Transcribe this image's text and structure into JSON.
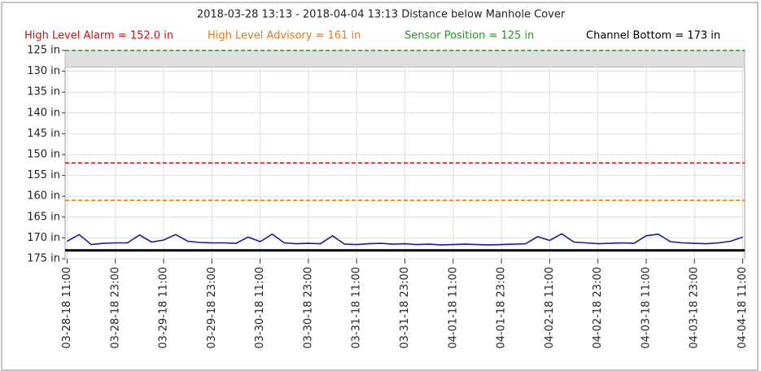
{
  "chart_data": {
    "type": "line",
    "title": "2018-03-28 13:13 - 2018-04-04 13:13 Distance below Manhole Cover",
    "references": [
      {
        "name": "High Level Alarm",
        "value": 152.0,
        "label": "High Level Alarm = 152.0 in",
        "color": "#cc1111",
        "style": "dashed"
      },
      {
        "name": "High Level Advisory",
        "value": 161,
        "label": "High Level Advisory = 161 in",
        "color": "#e07a1f",
        "style": "dashed"
      },
      {
        "name": "Sensor Position",
        "value": 125,
        "label": "Sensor Position = 125 in",
        "color": "#229922",
        "style": "dashed"
      },
      {
        "name": "Channel Bottom",
        "value": 173,
        "label": "Channel Bottom = 173 in",
        "color": "#000000",
        "style": "solid"
      }
    ],
    "shaded_range": [
      125,
      129
    ],
    "x": [
      "03-28-18 11:00",
      "03-28-18 14:00",
      "03-28-18 17:00",
      "03-28-18 20:00",
      "03-28-18 23:00",
      "03-29-18 02:00",
      "03-29-18 05:00",
      "03-29-18 08:00",
      "03-29-18 11:00",
      "03-29-18 14:00",
      "03-29-18 17:00",
      "03-29-18 20:00",
      "03-29-18 23:00",
      "03-30-18 02:00",
      "03-30-18 05:00",
      "03-30-18 08:00",
      "03-30-18 11:00",
      "03-30-18 14:00",
      "03-30-18 17:00",
      "03-30-18 20:00",
      "03-30-18 23:00",
      "03-31-18 02:00",
      "03-31-18 05:00",
      "03-31-18 08:00",
      "03-31-18 11:00",
      "03-31-18 14:00",
      "03-31-18 17:00",
      "03-31-18 20:00",
      "03-31-18 23:00",
      "04-01-18 02:00",
      "04-01-18 05:00",
      "04-01-18 08:00",
      "04-01-18 11:00",
      "04-01-18 14:00",
      "04-01-18 17:00",
      "04-01-18 20:00",
      "04-01-18 23:00",
      "04-02-18 02:00",
      "04-02-18 05:00",
      "04-02-18 08:00",
      "04-02-18 11:00",
      "04-02-18 14:00",
      "04-02-18 17:00",
      "04-02-18 20:00",
      "04-02-18 23:00",
      "04-03-18 02:00",
      "04-03-18 05:00",
      "04-03-18 08:00",
      "04-03-18 11:00",
      "04-03-18 14:00",
      "04-03-18 17:00",
      "04-03-18 20:00",
      "04-03-18 23:00",
      "04-04-18 02:00",
      "04-04-18 05:00",
      "04-04-18 08:00",
      "04-04-18 11:00"
    ],
    "series": [
      {
        "name": "Distance below Manhole Cover",
        "color": "#1a1aa0",
        "values": [
          170.8,
          169.2,
          171.6,
          171.3,
          171.2,
          171.2,
          169.3,
          171.0,
          170.5,
          169.2,
          170.8,
          171.1,
          171.2,
          171.2,
          171.3,
          169.8,
          170.9,
          169.1,
          171.2,
          171.4,
          171.3,
          171.4,
          169.5,
          171.5,
          171.6,
          171.4,
          171.3,
          171.5,
          171.4,
          171.6,
          171.5,
          171.7,
          171.6,
          171.5,
          171.6,
          171.7,
          171.6,
          171.5,
          171.4,
          169.7,
          170.6,
          169.0,
          171.0,
          171.2,
          171.4,
          171.3,
          171.2,
          171.3,
          169.5,
          169.1,
          170.9,
          171.2,
          171.3,
          171.4,
          171.2,
          170.8,
          169.8
        ]
      }
    ],
    "xlim": [
      "03-28-18 10:30",
      "04-04-18 11:30"
    ],
    "xticks": [
      "03-28-18 11:00",
      "03-28-18 23:00",
      "03-29-18 11:00",
      "03-29-18 23:00",
      "03-30-18 11:00",
      "03-30-18 23:00",
      "03-31-18 11:00",
      "03-31-18 23:00",
      "04-01-18 11:00",
      "04-01-18 23:00",
      "04-02-18 11:00",
      "04-02-18 23:00",
      "04-03-18 11:00",
      "04-03-18 23:00",
      "04-04-18 11:00"
    ],
    "ylim": [
      125,
      175
    ],
    "y_inverted": true,
    "yticks": [
      {
        "value": 125,
        "label": "125 in"
      },
      {
        "value": 130,
        "label": "130 in"
      },
      {
        "value": 135,
        "label": "135 in"
      },
      {
        "value": 140,
        "label": "140 in"
      },
      {
        "value": 145,
        "label": "145 in"
      },
      {
        "value": 150,
        "label": "150 in"
      },
      {
        "value": 155,
        "label": "155 in"
      },
      {
        "value": 160,
        "label": "160 in"
      },
      {
        "value": 165,
        "label": "165 in"
      },
      {
        "value": 170,
        "label": "170 in"
      },
      {
        "value": 175,
        "label": "175 in"
      }
    ],
    "grid": true
  }
}
